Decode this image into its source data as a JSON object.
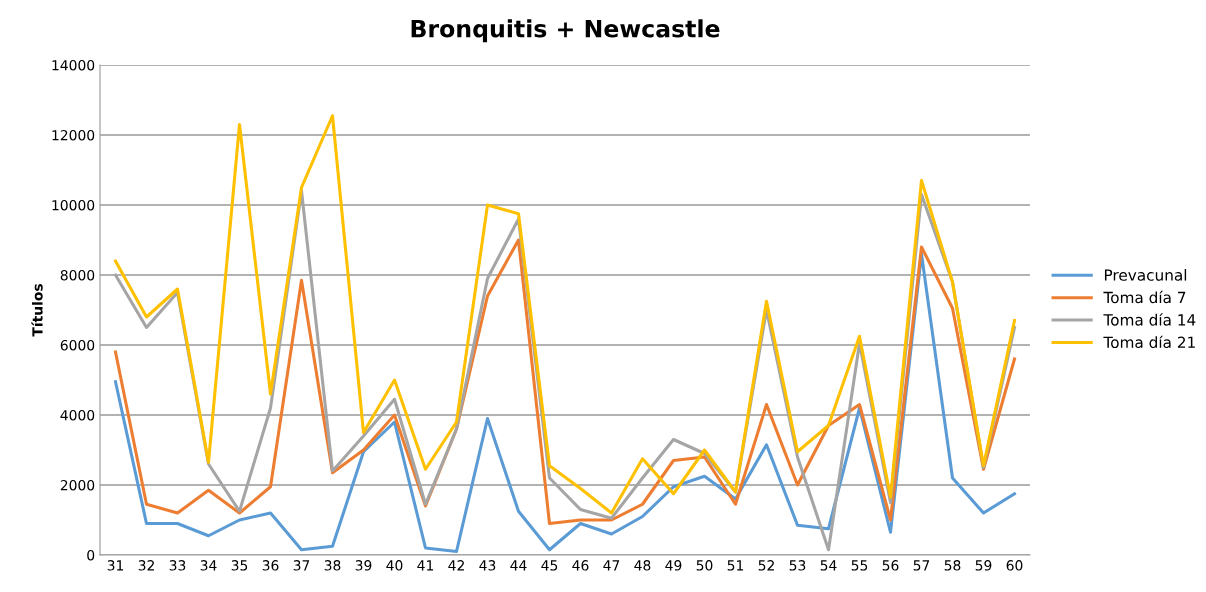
{
  "chart_data": {
    "type": "line",
    "title": "Bronquitis + Newcastle",
    "ylabel": "Títulos",
    "categories": [
      "31",
      "32",
      "33",
      "34",
      "35",
      "36",
      "37",
      "38",
      "39",
      "40",
      "41",
      "42",
      "43",
      "44",
      "45",
      "46",
      "47",
      "48",
      "49",
      "50",
      "51",
      "52",
      "53",
      "54",
      "55",
      "56",
      "57",
      "58",
      "59",
      "60"
    ],
    "ylim": [
      0,
      14000
    ],
    "yticks": [
      0,
      2000,
      4000,
      6000,
      8000,
      10000,
      12000,
      14000
    ],
    "grid": "y",
    "legend": "right",
    "marker": "none",
    "line_style": "solid",
    "series": [
      {
        "name": "Prevacunal",
        "color": "#5b9bd5",
        "values": [
          4950,
          900,
          900,
          550,
          1000,
          1200,
          150,
          250,
          2950,
          3800,
          200,
          100,
          3900,
          1250,
          150,
          900,
          600,
          1100,
          1950,
          2250,
          1600,
          3150,
          850,
          750,
          4200,
          650,
          8600,
          2200,
          1200,
          1750
        ]
      },
      {
        "name": "Toma día 7",
        "color": "#ed7d31",
        "values": [
          5800,
          1450,
          1200,
          1850,
          1200,
          1950,
          7850,
          2350,
          3000,
          4000,
          1400,
          3600,
          7400,
          9000,
          900,
          1000,
          1000,
          1450,
          2700,
          2800,
          1450,
          4300,
          2000,
          3700,
          4300,
          1000,
          8800,
          7050,
          2450,
          5600
        ]
      },
      {
        "name": "Toma día 14",
        "color": "#a5a5a5",
        "values": [
          8000,
          6500,
          7500,
          2600,
          1250,
          4200,
          10400,
          2400,
          3400,
          4450,
          1450,
          3600,
          7900,
          9600,
          2200,
          1300,
          1050,
          2200,
          3300,
          2900,
          1800,
          7000,
          2800,
          150,
          6050,
          1500,
          10300,
          7800,
          2500,
          6500
        ]
      },
      {
        "name": "Toma día 21",
        "color": "#ffc000",
        "values": [
          8400,
          6800,
          7600,
          2650,
          12300,
          4600,
          10500,
          12550,
          3500,
          5000,
          2450,
          3800,
          10000,
          9750,
          2550,
          1900,
          1200,
          2750,
          1750,
          3000,
          1800,
          7250,
          2950,
          3700,
          6250,
          1650,
          10700,
          7800,
          2550,
          6700
        ]
      }
    ]
  }
}
